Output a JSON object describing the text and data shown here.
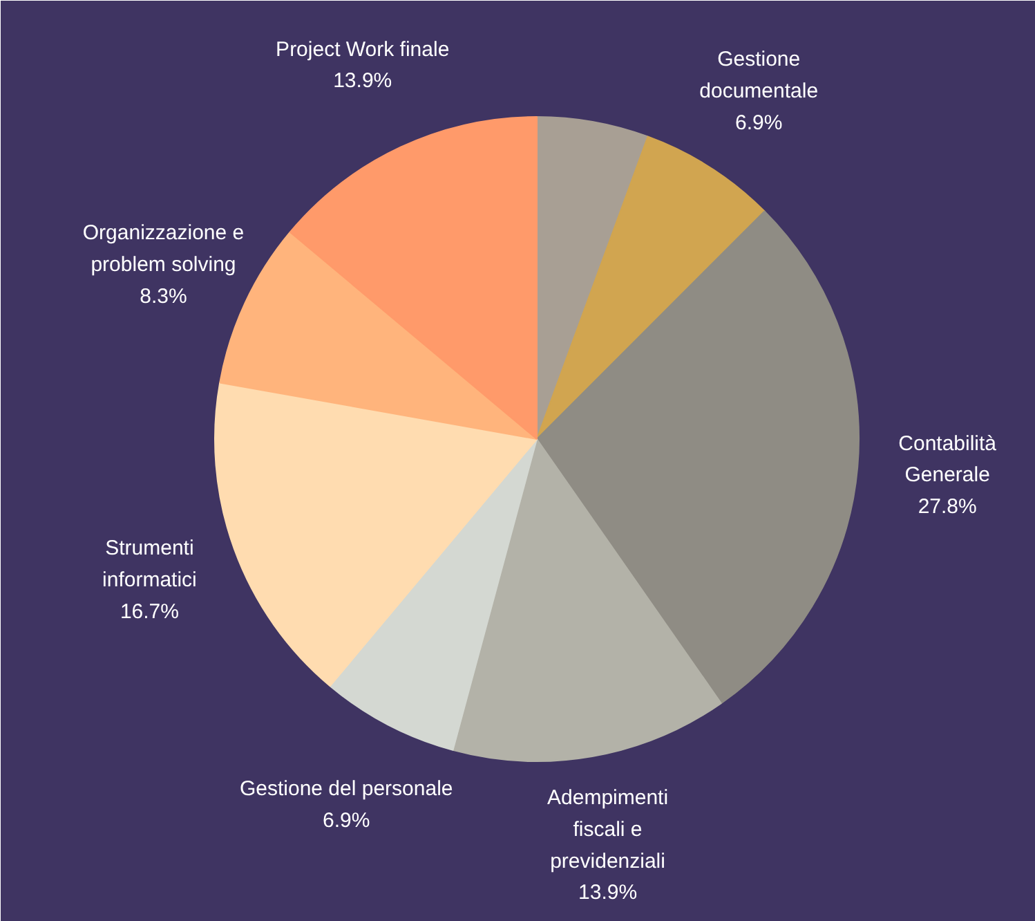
{
  "chart_data": {
    "type": "pie",
    "categories": [
      null,
      "Gestione\ndocumentale",
      "Contabilità\nGenerale",
      "Adempimenti\nfiscali e\nprevidenziali",
      "Gestione del personale",
      "Strumenti\ninformatici",
      "Organizzazione e\nproblem solving",
      "Project Work finale"
    ],
    "values": [
      5.6,
      6.9,
      27.8,
      13.9,
      6.9,
      16.7,
      8.3,
      13.9
    ],
    "colors": [
      "#a89f94",
      "#d1a550",
      "#8f8c84",
      "#b3b2a8",
      "#d4d8d2",
      "#ffdcb0",
      "#ffb47c",
      "#ff9a6a"
    ],
    "value_labels": [
      null,
      "6.9%",
      "27.8%",
      "13.9%",
      "6.9%",
      "16.7%",
      "8.3%",
      "13.9%"
    ],
    "legend": false
  }
}
